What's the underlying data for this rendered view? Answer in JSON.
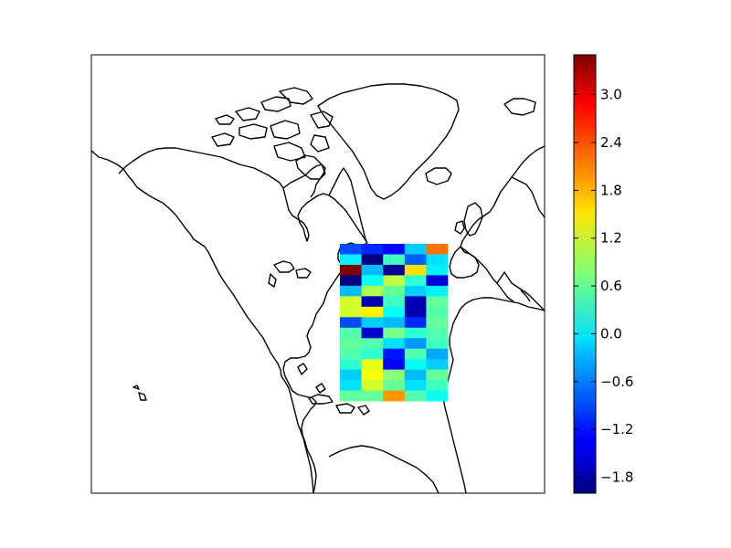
{
  "figure": {
    "type": "map-heatmap",
    "map_projection": "north-atlantic regional map",
    "features": [
      "north-america-coastline",
      "greenland-coastline",
      "europe-coastline",
      "africa-coastline",
      "caribbean-islands",
      "hudson-bay",
      "great-lakes"
    ]
  },
  "chart_data": {
    "type": "heatmap",
    "title": "",
    "xlabel": "",
    "ylabel": "",
    "colormap": "jet",
    "vmin": -2.0,
    "vmax": 3.5,
    "grid": [
      [
        -0.9,
        -1.1,
        -1.3,
        -0.2,
        2.2
      ],
      [
        0.0,
        -2.0,
        0.4,
        -0.8,
        -0.1
      ],
      [
        3.5,
        -0.3,
        -1.9,
        1.6,
        0.0
      ],
      [
        -2.0,
        0.1,
        1.1,
        0.3,
        -1.5
      ],
      [
        -0.3,
        1.0,
        0.6,
        -0.2,
        0.0
      ],
      [
        1.2,
        -1.7,
        0.4,
        -1.7,
        0.6
      ],
      [
        1.2,
        1.5,
        0.1,
        -1.7,
        0.5
      ],
      [
        -0.9,
        -0.2,
        -0.3,
        -1.1,
        0.6
      ],
      [
        0.5,
        -1.6,
        0.7,
        0.3,
        0.5
      ],
      [
        0.6,
        0.5,
        -0.1,
        -0.5,
        0.4
      ],
      [
        0.5,
        0.3,
        -1.2,
        0.5,
        -0.4
      ],
      [
        0.3,
        1.3,
        -1.3,
        0.1,
        -0.2
      ],
      [
        -0.2,
        1.4,
        0.8,
        -0.3,
        0.6
      ],
      [
        -0.1,
        1.2,
        0.6,
        -0.1,
        0.4
      ],
      [
        0.6,
        0.6,
        2.0,
        0.5,
        0.1
      ]
    ],
    "colorbar": {
      "ticks": [
        -1.8,
        -1.2,
        -0.6,
        0.0,
        0.6,
        1.2,
        1.8,
        2.4,
        3.0
      ],
      "tick_labels": [
        "−1.8",
        "−1.2",
        "−0.6",
        "0.0",
        "0.6",
        "1.2",
        "1.8",
        "2.4",
        "3.0"
      ]
    }
  }
}
